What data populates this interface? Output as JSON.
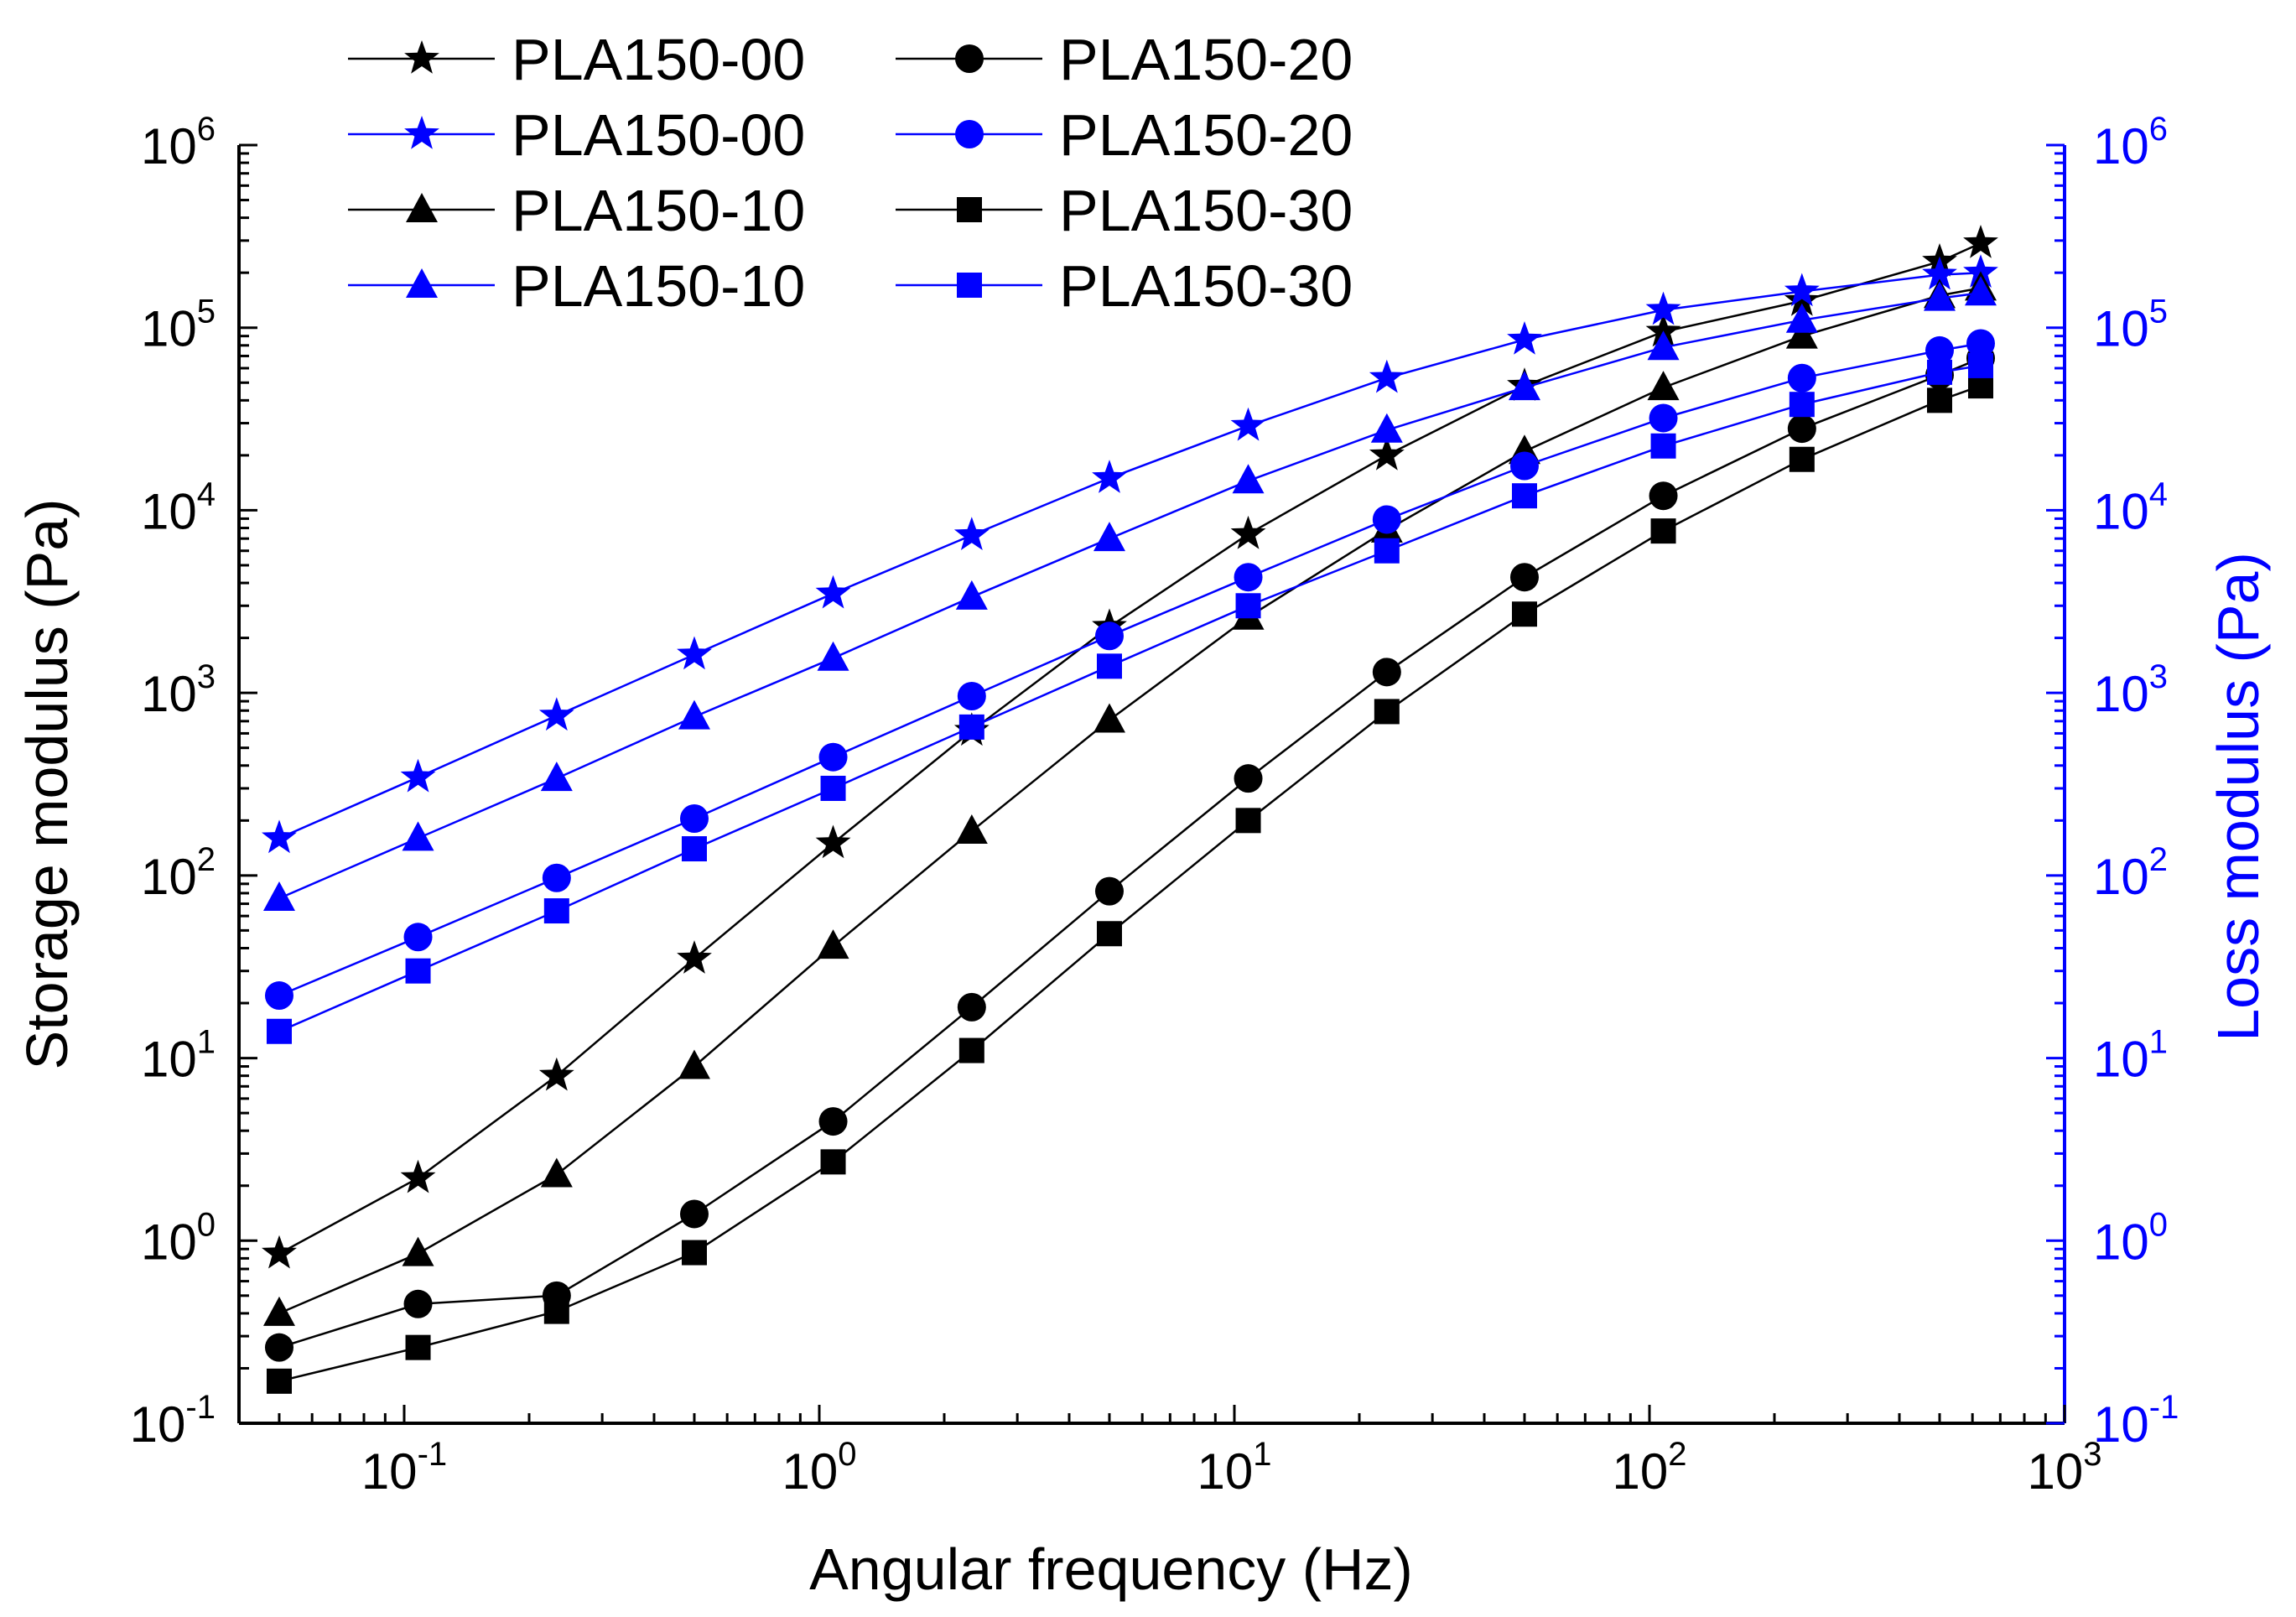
{
  "chart_data": {
    "type": "line",
    "x_scale": "log",
    "y_scale": "log",
    "xlabel": "Angular frequency (Hz)",
    "ylabel": "Storage modulus (Pa)",
    "y2label": "Loss modulus (Pa)",
    "xlim": [
      0.04,
      1000
    ],
    "ylim": [
      0.1,
      1000000
    ],
    "y2lim": [
      0.1,
      1000000
    ],
    "x_ticks": [
      {
        "base": "10",
        "exp": "-1"
      },
      {
        "base": "10",
        "exp": "0"
      },
      {
        "base": "10",
        "exp": "1"
      },
      {
        "base": "10",
        "exp": "2"
      },
      {
        "base": "10",
        "exp": "3"
      }
    ],
    "y_ticks": [
      {
        "base": "10",
        "exp": "-1"
      },
      {
        "base": "10",
        "exp": "0"
      },
      {
        "base": "10",
        "exp": "1"
      },
      {
        "base": "10",
        "exp": "2"
      },
      {
        "base": "10",
        "exp": "3"
      },
      {
        "base": "10",
        "exp": "4"
      },
      {
        "base": "10",
        "exp": "5"
      },
      {
        "base": "10",
        "exp": "6"
      }
    ],
    "x": [
      0.05,
      0.108,
      0.233,
      0.5,
      1.08,
      2.33,
      5.0,
      10.8,
      23.3,
      50,
      108,
      233,
      500,
      628
    ],
    "colors": {
      "storage": "#000000",
      "loss": "#0000ff"
    },
    "legend_position": "top-left",
    "series": [
      {
        "name": "PLA150-00",
        "modulus": "storage",
        "axis": "left",
        "color": "#000000",
        "marker": "star",
        "values": [
          0.85,
          2.2,
          8,
          35,
          150,
          620,
          2300,
          7400,
          20000,
          48000,
          95000,
          140000,
          230000,
          290000
        ]
      },
      {
        "name": "PLA150-00",
        "modulus": "loss",
        "axis": "right",
        "color": "#0000ff",
        "marker": "star",
        "values": [
          160,
          345,
          750,
          1620,
          3500,
          7300,
          15000,
          29000,
          53000,
          86000,
          125000,
          158000,
          195000,
          200000
        ]
      },
      {
        "name": "PLA150-10",
        "modulus": "storage",
        "axis": "left",
        "color": "#000000",
        "marker": "triangle",
        "values": [
          0.4,
          0.85,
          2.3,
          9,
          41,
          175,
          710,
          2600,
          7800,
          21000,
          47000,
          90000,
          150000,
          165000
        ]
      },
      {
        "name": "PLA150-10",
        "modulus": "loss",
        "axis": "right",
        "color": "#0000ff",
        "marker": "triangle",
        "values": [
          75,
          160,
          340,
          740,
          1550,
          3350,
          7000,
          14500,
          27500,
          47000,
          78000,
          110000,
          145000,
          155000
        ]
      },
      {
        "name": "PLA150-20",
        "modulus": "storage",
        "axis": "left",
        "color": "#000000",
        "marker": "circle",
        "values": [
          0.26,
          0.45,
          0.5,
          1.4,
          4.5,
          19,
          82,
          340,
          1300,
          4300,
          12000,
          28000,
          55000,
          68000
        ]
      },
      {
        "name": "PLA150-20",
        "modulus": "loss",
        "axis": "right",
        "color": "#0000ff",
        "marker": "circle",
        "values": [
          22,
          46,
          97,
          205,
          445,
          960,
          2050,
          4300,
          8900,
          17500,
          32000,
          53000,
          75000,
          82000
        ]
      },
      {
        "name": "PLA150-30",
        "modulus": "storage",
        "axis": "left",
        "color": "#000000",
        "marker": "square",
        "values": [
          0.17,
          0.26,
          0.41,
          0.86,
          2.7,
          11,
          48,
          200,
          790,
          2700,
          7700,
          19000,
          40000,
          48000
        ]
      },
      {
        "name": "PLA150-30",
        "modulus": "loss",
        "axis": "right",
        "color": "#0000ff",
        "marker": "square",
        "values": [
          14,
          30,
          64,
          140,
          300,
          650,
          1400,
          3000,
          6000,
          12000,
          22500,
          38000,
          57000,
          62000
        ]
      }
    ]
  }
}
